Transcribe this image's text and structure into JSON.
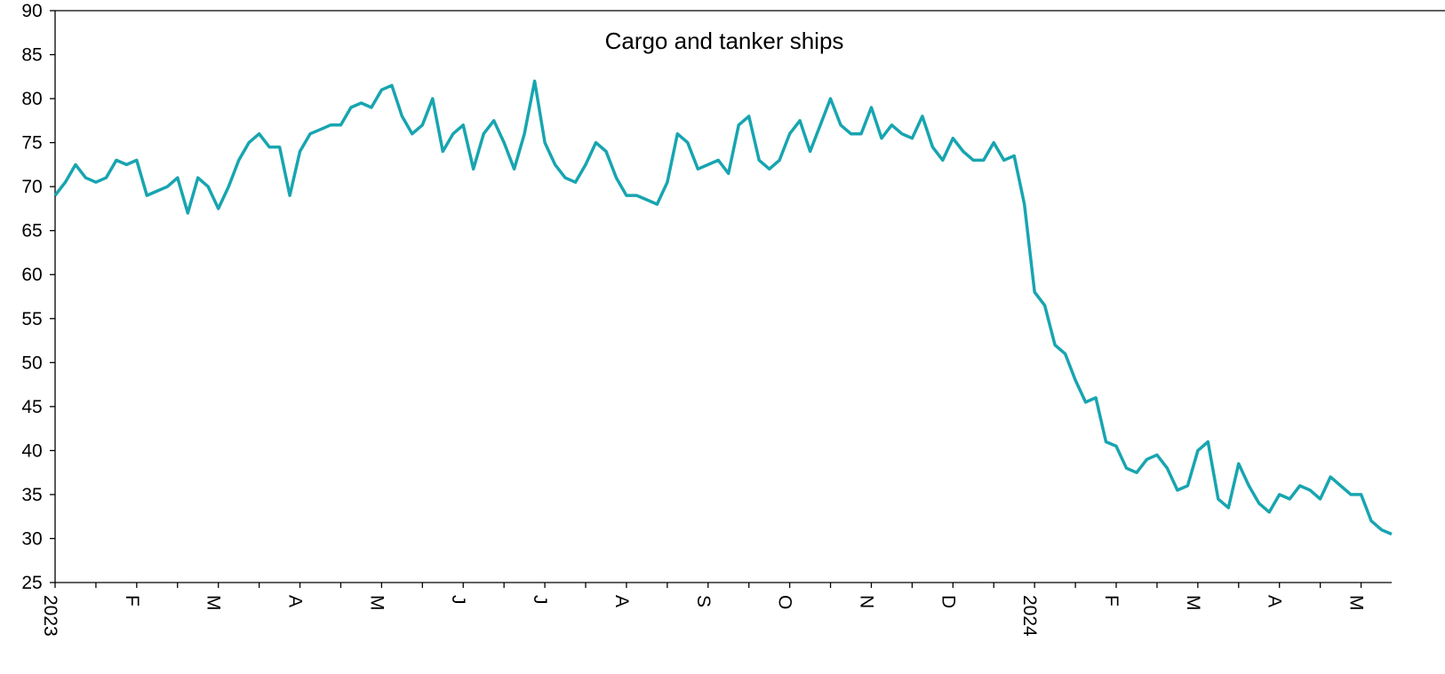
{
  "chart_data": {
    "type": "line",
    "title": "Cargo and tanker ships",
    "categories": [
      "2023",
      null,
      null,
      null,
      null,
      null,
      null,
      null,
      "F",
      null,
      null,
      null,
      null,
      null,
      null,
      null,
      "M",
      null,
      null,
      null,
      null,
      null,
      null,
      null,
      "A",
      null,
      null,
      null,
      null,
      null,
      null,
      null,
      "M",
      null,
      null,
      null,
      null,
      null,
      null,
      null,
      "J",
      null,
      null,
      null,
      null,
      null,
      null,
      null,
      "J",
      null,
      null,
      null,
      null,
      null,
      null,
      null,
      "A",
      null,
      null,
      null,
      null,
      null,
      null,
      null,
      "S",
      null,
      null,
      null,
      null,
      null,
      null,
      null,
      "O",
      null,
      null,
      null,
      null,
      null,
      null,
      null,
      "N",
      null,
      null,
      null,
      null,
      null,
      null,
      null,
      "D",
      null,
      null,
      null,
      null,
      null,
      null,
      null,
      "2024",
      null,
      null,
      null,
      null,
      null,
      null,
      null,
      "F",
      null,
      null,
      null,
      null,
      null,
      null,
      null,
      "M",
      null,
      null,
      null,
      null,
      null,
      null,
      null,
      "A",
      null,
      null,
      null,
      null,
      null,
      null,
      null,
      "M",
      null,
      null,
      null
    ],
    "series": [
      {
        "color": "#17a5b0",
        "values": [
          69,
          70.5,
          72.5,
          71,
          70.5,
          71,
          73,
          72.5,
          73,
          69,
          69.5,
          70,
          71,
          67,
          71,
          70,
          67.5,
          70,
          73,
          75,
          76,
          74.5,
          74.5,
          69,
          74,
          76,
          76.5,
          77,
          77,
          79,
          79.5,
          79,
          81,
          81.5,
          78,
          76,
          77,
          80,
          74,
          76,
          77,
          72,
          76,
          77.5,
          75,
          72,
          76,
          82,
          75,
          72.5,
          71,
          70.5,
          72.5,
          75,
          74,
          71,
          69,
          69,
          68.5,
          68,
          70.5,
          76,
          75,
          72,
          72.5,
          73,
          71.5,
          77,
          78,
          73,
          72,
          73,
          76,
          77.5,
          74,
          77,
          80,
          77,
          76,
          76,
          79,
          75.5,
          77,
          76,
          75.5,
          78,
          74.5,
          73,
          75.5,
          74,
          73,
          73,
          75,
          73,
          73.5,
          68,
          58,
          56.5,
          52,
          51,
          48,
          45.5,
          46,
          41,
          40.5,
          38,
          37.5,
          39,
          39.5,
          38,
          35.5,
          36,
          40,
          41,
          34.5,
          33.5,
          38.5,
          36,
          34,
          33,
          35,
          34.5,
          36,
          35.5,
          34.5,
          37,
          36,
          35,
          35,
          32,
          31,
          30.5
        ]
      }
    ],
    "ylim": [
      25,
      90
    ],
    "yticks": [
      25,
      30,
      35,
      40,
      45,
      50,
      55,
      60,
      65,
      70,
      75,
      80,
      85,
      90
    ]
  }
}
